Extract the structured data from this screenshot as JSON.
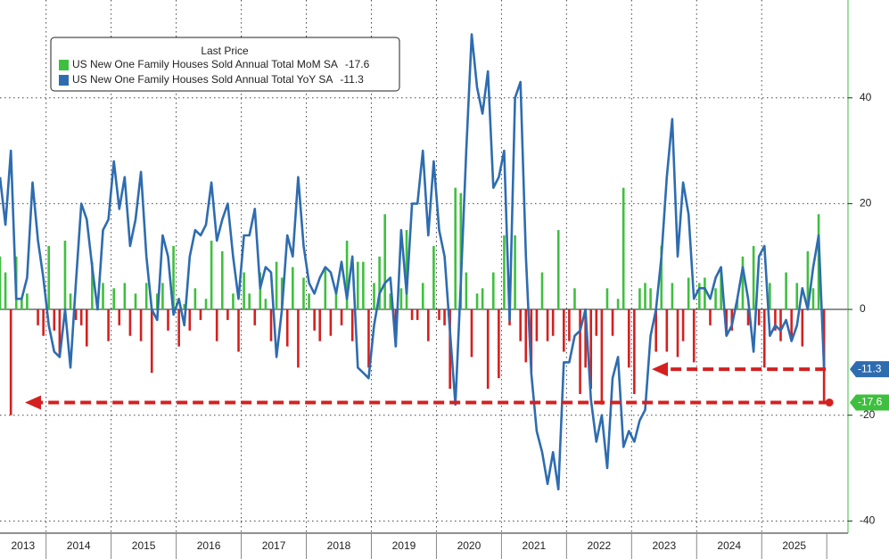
{
  "chart_data": {
    "type": "combo",
    "legend_title": "Last Price",
    "ylim": [
      -42.3,
      58.5
    ],
    "yticks": [
      -40,
      -20,
      0,
      20,
      40
    ],
    "grid": true,
    "year_labels": [
      "2013",
      "2014",
      "2015",
      "2016",
      "2017",
      "2018",
      "2019",
      "2020",
      "2021",
      "2022",
      "2023",
      "2024",
      "2025"
    ],
    "series": [
      {
        "name": "US New One Family Houses Sold Annual Total MoM SA",
        "type": "bar",
        "color": "#3fbf3f",
        "negative_color": "#d42020",
        "values": [
          10,
          7,
          -20,
          10,
          2,
          3,
          0,
          -3,
          -5,
          12,
          -4,
          -9,
          13,
          3,
          -2,
          -3,
          -7,
          9,
          2,
          5,
          -6,
          4,
          -3,
          5,
          -5,
          3,
          -6,
          5,
          -12,
          3,
          5,
          -4,
          12,
          -7,
          1,
          -4,
          4,
          -2,
          2,
          13,
          -6,
          11,
          -2,
          3,
          -8,
          7,
          3,
          -3,
          7,
          2,
          -6,
          9,
          6,
          -7,
          8,
          -11,
          6,
          3,
          -4,
          -6,
          8,
          -5,
          4,
          -3,
          13,
          -6,
          9,
          9,
          -11,
          5,
          10,
          18,
          3,
          -7,
          4,
          15,
          -2,
          -2,
          5,
          -6,
          12,
          -2,
          -3,
          -15,
          23,
          22,
          7,
          -9,
          3,
          4,
          -15,
          7,
          -13,
          14,
          -3,
          14,
          -6,
          -10,
          -12,
          -6,
          7,
          -6,
          -5,
          15,
          -8,
          -6,
          4,
          -16,
          -11,
          -15,
          -5,
          -18,
          4,
          -5,
          2,
          23,
          -11,
          -16,
          4,
          5,
          4,
          -8,
          12,
          -8,
          5,
          -9,
          -6,
          6,
          -10,
          5,
          6,
          -3,
          4,
          8,
          -5,
          -4,
          2,
          10,
          -3,
          12,
          -3,
          -11,
          5,
          -4,
          -6,
          7,
          -6,
          5,
          -7,
          11,
          4,
          18,
          -17.6
        ]
      },
      {
        "name": "US New One Family Houses Sold Annual Total YoY SA",
        "type": "line",
        "color": "#2e6cb0",
        "values": [
          25,
          16,
          30,
          2,
          2,
          6,
          24,
          13,
          6,
          -3,
          -8,
          -9,
          0,
          -11,
          5,
          20,
          17,
          8,
          0,
          15,
          17,
          28,
          19,
          25,
          12,
          17,
          26,
          10,
          0,
          -2,
          14,
          10,
          -1,
          2,
          -3,
          10,
          15,
          14,
          16,
          24,
          13,
          17,
          20,
          10,
          2,
          14,
          14,
          19,
          4,
          8,
          7,
          -9,
          0,
          14,
          10,
          25,
          12,
          5,
          3,
          6,
          8,
          7,
          3,
          9,
          2,
          10,
          -11,
          -12,
          -13,
          -3,
          3,
          5,
          6,
          -7,
          15,
          3,
          20,
          20,
          30,
          14,
          28,
          15,
          10,
          -4,
          -18,
          5,
          30,
          52,
          42,
          37,
          45,
          23,
          25,
          30,
          -2,
          40,
          43,
          10,
          -12,
          -23,
          -27,
          -33,
          -27,
          -34,
          -10,
          -10,
          -5,
          -4,
          0,
          -17,
          -25,
          -20,
          -30,
          -13,
          -9,
          -26,
          -23,
          -25,
          -21,
          -19,
          -5,
          0,
          10,
          25,
          36,
          10,
          24,
          18,
          2,
          4,
          4,
          2,
          6,
          8,
          -5,
          -3,
          2,
          8,
          2,
          -8,
          10,
          12,
          -5,
          -3,
          -4,
          -2,
          -6,
          -3,
          4,
          0,
          8,
          14,
          -11.3
        ]
      }
    ]
  }
}
